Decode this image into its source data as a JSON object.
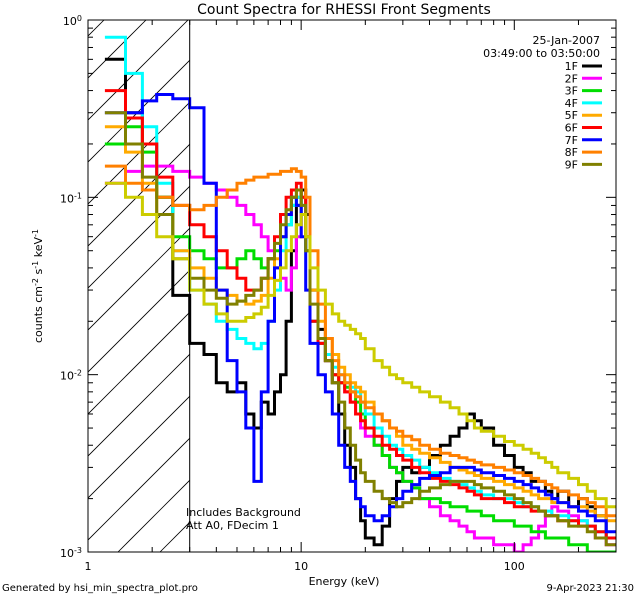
{
  "chart_data": {
    "type": "line",
    "title": "Count Spectra for RHESSI Front Segments",
    "xlabel": "Energy (keV)",
    "ylabel_parts": [
      "counts cm",
      "-2",
      " s",
      "-1",
      " keV",
      "-1"
    ],
    "xscale": "log",
    "yscale": "log",
    "xlim": [
      1,
      300
    ],
    "ylim": [
      0.001,
      1.0
    ],
    "x_ticks": [
      {
        "v": 1,
        "label": "1"
      },
      {
        "v": 10,
        "label": "10"
      },
      {
        "v": 100,
        "label": "100"
      }
    ],
    "y_ticks": [
      {
        "v": 1.0,
        "base": "10",
        "exp": "0"
      },
      {
        "v": 0.1,
        "base": "10",
        "exp": "-1"
      },
      {
        "v": 0.01,
        "base": "10",
        "exp": "-2"
      },
      {
        "v": 0.001,
        "base": "10",
        "exp": "-3"
      }
    ],
    "hatch_upper_energy": 3,
    "legend_header": [
      "25-Jan-2007",
      "03:49:00 to 03:50:00"
    ],
    "annotations": [
      "Includes Background",
      "Att A0, FDecim 1"
    ],
    "energy_edges": [
      1.2,
      1.5,
      1.8,
      2.1,
      2.5,
      3.0,
      3.5,
      4.0,
      4.5,
      5.0,
      5.5,
      6.0,
      6.5,
      7.0,
      7.5,
      8.0,
      8.5,
      9.0,
      9.5,
      10,
      10.5,
      11,
      12,
      13,
      14,
      15,
      16,
      17,
      18,
      19,
      20,
      22,
      24,
      26,
      28,
      30,
      33,
      36,
      40,
      45,
      50,
      55,
      60,
      65,
      70,
      80,
      90,
      100,
      110,
      120,
      130,
      140,
      150,
      160,
      180,
      200,
      220,
      240,
      270,
      300
    ],
    "series": [
      {
        "name": "1F",
        "color": "#000000",
        "values": [
          0.6,
          0.3,
          0.2,
          0.1,
          0.028,
          0.015,
          0.013,
          0.009,
          0.008,
          0.009,
          0.006,
          0.005,
          0.007,
          0.006,
          0.008,
          0.01,
          0.02,
          0.05,
          0.09,
          0.11,
          0.08,
          0.03,
          0.018,
          0.012,
          0.009,
          0.006,
          0.004,
          0.003,
          0.002,
          0.0015,
          0.0012,
          0.0011,
          0.0014,
          0.002,
          0.0025,
          0.003,
          0.0028,
          0.003,
          0.0035,
          0.004,
          0.0045,
          0.005,
          0.006,
          0.0055,
          0.005,
          0.004,
          0.0035,
          0.003,
          0.0028,
          0.0025,
          0.0025,
          0.0022,
          0.002,
          0.0022,
          0.0018,
          0.002,
          0.0018,
          0.0016,
          0.0012
        ]
      },
      {
        "name": "2F",
        "color": "#ff00ff",
        "values": [
          0.12,
          0.14,
          0.15,
          0.15,
          0.14,
          0.13,
          0.12,
          0.11,
          0.1,
          0.09,
          0.08,
          0.07,
          0.06,
          0.05,
          0.04,
          0.035,
          0.03,
          0.04,
          0.06,
          0.1,
          0.05,
          0.02,
          0.015,
          0.012,
          0.01,
          0.009,
          0.008,
          0.007,
          0.006,
          0.005,
          0.0045,
          0.004,
          0.0035,
          0.003,
          0.0028,
          0.0025,
          0.0023,
          0.002,
          0.0018,
          0.0016,
          0.0015,
          0.0014,
          0.0013,
          0.0012,
          0.0012,
          0.0011,
          0.0011,
          0.001,
          0.0011,
          0.0012,
          0.0014,
          0.0016,
          0.0018,
          0.0017,
          0.0016,
          0.0015,
          0.0014,
          0.0012,
          0.0011
        ]
      },
      {
        "name": "3F",
        "color": "#00dd00",
        "values": [
          0.2,
          0.25,
          0.18,
          0.1,
          0.06,
          0.05,
          0.045,
          0.04,
          0.04,
          0.045,
          0.05,
          0.045,
          0.04,
          0.045,
          0.05,
          0.06,
          0.07,
          0.09,
          0.1,
          0.08,
          0.05,
          0.02,
          0.015,
          0.012,
          0.01,
          0.009,
          0.0085,
          0.008,
          0.007,
          0.006,
          0.005,
          0.004,
          0.0035,
          0.003,
          0.0028,
          0.0025,
          0.0023,
          0.002,
          0.002,
          0.0019,
          0.0018,
          0.0018,
          0.0017,
          0.0017,
          0.0016,
          0.0015,
          0.0015,
          0.0014,
          0.0014,
          0.0013,
          0.0013,
          0.0012,
          0.0012,
          0.0012,
          0.0011,
          0.0011,
          0.001,
          0.001,
          0.001
        ]
      },
      {
        "name": "4F",
        "color": "#00ffff",
        "values": [
          0.8,
          0.5,
          0.25,
          0.12,
          0.05,
          0.03,
          0.025,
          0.02,
          0.018,
          0.016,
          0.015,
          0.014,
          0.015,
          0.02,
          0.03,
          0.05,
          0.07,
          0.09,
          0.1,
          0.09,
          0.05,
          0.02,
          0.016,
          0.013,
          0.011,
          0.01,
          0.009,
          0.0085,
          0.008,
          0.007,
          0.006,
          0.005,
          0.0045,
          0.004,
          0.0038,
          0.0035,
          0.0033,
          0.003,
          0.0028,
          0.0026,
          0.0025,
          0.0024,
          0.0023,
          0.0022,
          0.0021,
          0.002,
          0.002,
          0.0019,
          0.0018,
          0.0018,
          0.0017,
          0.0017,
          0.0016,
          0.0016,
          0.0015,
          0.0015,
          0.0014,
          0.0013,
          0.0012
        ]
      },
      {
        "name": "5F",
        "color": "#ffaa00",
        "values": [
          0.25,
          0.18,
          0.12,
          0.08,
          0.05,
          0.04,
          0.035,
          0.03,
          0.028,
          0.026,
          0.025,
          0.026,
          0.028,
          0.035,
          0.045,
          0.06,
          0.08,
          0.1,
          0.11,
          0.1,
          0.06,
          0.03,
          0.02,
          0.016,
          0.013,
          0.011,
          0.01,
          0.009,
          0.0085,
          0.008,
          0.007,
          0.006,
          0.0055,
          0.005,
          0.0045,
          0.004,
          0.0038,
          0.0036,
          0.0034,
          0.0032,
          0.003,
          0.0029,
          0.0028,
          0.0027,
          0.0026,
          0.0025,
          0.0024,
          0.0023,
          0.0022,
          0.0021,
          0.002,
          0.002,
          0.0019,
          0.0019,
          0.0018,
          0.0018,
          0.0017,
          0.0016,
          0.0015
        ]
      },
      {
        "name": "6F",
        "color": "#ff0000",
        "values": [
          0.4,
          0.28,
          0.2,
          0.13,
          0.09,
          0.07,
          0.06,
          0.05,
          0.04,
          0.035,
          0.03,
          0.03,
          0.035,
          0.045,
          0.06,
          0.08,
          0.1,
          0.11,
          0.12,
          0.1,
          0.06,
          0.02,
          0.015,
          0.012,
          0.01,
          0.009,
          0.008,
          0.007,
          0.006,
          0.0055,
          0.005,
          0.0045,
          0.004,
          0.0038,
          0.0035,
          0.0033,
          0.003,
          0.0028,
          0.0026,
          0.0025,
          0.0024,
          0.0023,
          0.0022,
          0.0021,
          0.002,
          0.002,
          0.0019,
          0.0018,
          0.0018,
          0.0017,
          0.0017,
          0.0016,
          0.0016,
          0.0015,
          0.0015,
          0.0014,
          0.0014,
          0.0013,
          0.0012
        ]
      },
      {
        "name": "7F",
        "color": "#0000ff",
        "values": [
          0.3,
          0.3,
          0.35,
          0.38,
          0.36,
          0.32,
          0.12,
          0.03,
          0.012,
          0.008,
          0.005,
          0.0025,
          0.008,
          0.02,
          0.04,
          0.06,
          0.08,
          0.1,
          0.09,
          0.06,
          0.03,
          0.015,
          0.01,
          0.008,
          0.006,
          0.004,
          0.003,
          0.0025,
          0.002,
          0.0018,
          0.0016,
          0.0015,
          0.0016,
          0.0018,
          0.002,
          0.0022,
          0.0024,
          0.0026,
          0.0027,
          0.0028,
          0.003,
          0.003,
          0.003,
          0.0029,
          0.0028,
          0.0027,
          0.0026,
          0.0025,
          0.0024,
          0.0023,
          0.0022,
          0.0021,
          0.002,
          0.0019,
          0.0018,
          0.0017,
          0.0016,
          0.0015,
          0.0013
        ]
      },
      {
        "name": "8F",
        "color": "#ff8000",
        "values": [
          0.15,
          0.12,
          0.11,
          0.1,
          0.09,
          0.085,
          0.09,
          0.1,
          0.11,
          0.12,
          0.125,
          0.13,
          0.13,
          0.135,
          0.135,
          0.14,
          0.14,
          0.145,
          0.14,
          0.13,
          0.1,
          0.05,
          0.025,
          0.016,
          0.012,
          0.01,
          0.009,
          0.008,
          0.0075,
          0.007,
          0.0065,
          0.006,
          0.0055,
          0.005,
          0.0048,
          0.0045,
          0.0043,
          0.004,
          0.0038,
          0.0036,
          0.0035,
          0.0034,
          0.0033,
          0.0032,
          0.0031,
          0.003,
          0.0029,
          0.0028,
          0.0027,
          0.0026,
          0.0025,
          0.0024,
          0.0023,
          0.0022,
          0.0021,
          0.002,
          0.0019,
          0.0018,
          0.0016
        ]
      },
      {
        "name": "9F",
        "color": "#808000",
        "values": [
          0.3,
          0.2,
          0.13,
          0.08,
          0.045,
          0.035,
          0.03,
          0.027,
          0.025,
          0.026,
          0.028,
          0.03,
          0.035,
          0.045,
          0.055,
          0.07,
          0.085,
          0.1,
          0.11,
          0.09,
          0.05,
          0.025,
          0.016,
          0.012,
          0.009,
          0.007,
          0.005,
          0.004,
          0.0033,
          0.0028,
          0.0025,
          0.0022,
          0.002,
          0.0019,
          0.0018,
          0.0019,
          0.002,
          0.0022,
          0.0023,
          0.0024,
          0.0025,
          0.0025,
          0.0025,
          0.0024,
          0.0023,
          0.0022,
          0.0021,
          0.002,
          0.0019,
          0.0018,
          0.0017,
          0.0016,
          0.0016,
          0.0015,
          0.0014,
          0.0014,
          0.0013,
          0.0012,
          0.0011
        ]
      },
      {
        "name": "",
        "color": "#cccc00",
        "values": [
          0.12,
          0.1,
          0.08,
          0.06,
          0.045,
          0.03,
          0.025,
          0.022,
          0.02,
          0.02,
          0.021,
          0.022,
          0.024,
          0.028,
          0.034,
          0.04,
          0.05,
          0.06,
          0.07,
          0.08,
          0.06,
          0.04,
          0.03,
          0.025,
          0.022,
          0.02,
          0.019,
          0.018,
          0.017,
          0.016,
          0.014,
          0.012,
          0.011,
          0.01,
          0.0095,
          0.009,
          0.0085,
          0.008,
          0.0075,
          0.007,
          0.0065,
          0.006,
          0.0055,
          0.005,
          0.0048,
          0.0045,
          0.0042,
          0.004,
          0.0038,
          0.0036,
          0.0034,
          0.0032,
          0.003,
          0.0028,
          0.0026,
          0.0024,
          0.0022,
          0.002,
          0.0018
        ]
      }
    ]
  },
  "footer": {
    "left": "Generated by hsi_min_spectra_plot.pro",
    "right": "9-Apr-2023 21:30"
  }
}
